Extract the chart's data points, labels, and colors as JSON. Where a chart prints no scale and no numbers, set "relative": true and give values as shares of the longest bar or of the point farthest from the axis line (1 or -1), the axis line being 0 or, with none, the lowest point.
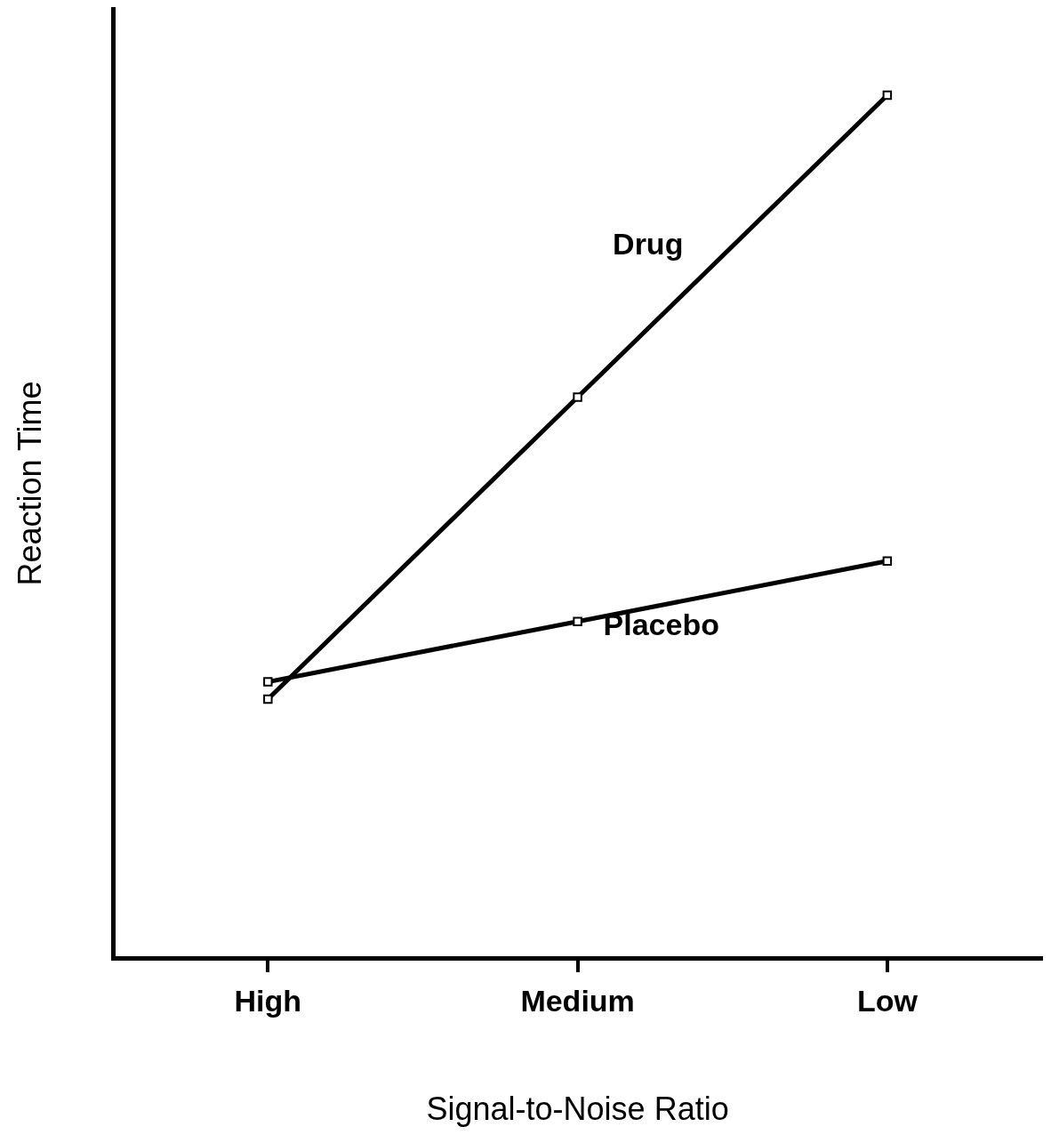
{
  "chart_data": {
    "type": "line",
    "xlabel": "Signal-to-Noise Ratio",
    "ylabel": "Reaction Time",
    "categories": [
      "High",
      "Medium",
      "Low"
    ],
    "relative": true,
    "marker": "square",
    "line_style": "solid",
    "legend": false,
    "series": [
      {
        "name": "Drug",
        "color": "#000000",
        "values": [
          0.3,
          0.65,
          1
        ]
      },
      {
        "name": "Placebo",
        "color": "#000000",
        "values": [
          0.32,
          0.39,
          0.46
        ]
      }
    ]
  }
}
